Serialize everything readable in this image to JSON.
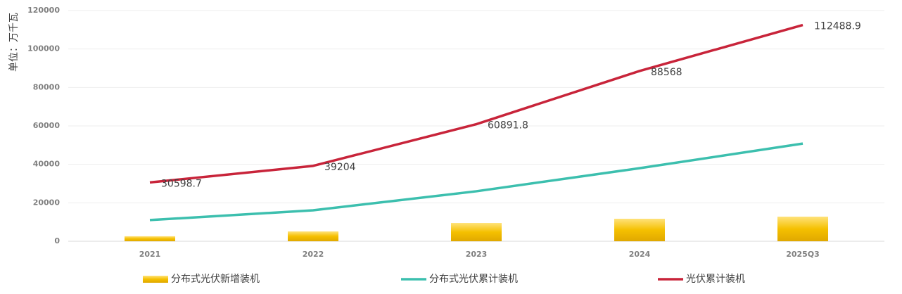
{
  "chart_data": {
    "type": "combo",
    "y_label": "单位：万千瓦",
    "categories": [
      "2021",
      "2022",
      "2023",
      "2024",
      "2025Q3"
    ],
    "series": [
      {
        "name": "分布式光伏新增装机",
        "type": "bar",
        "color": "#f0b400",
        "values": [
          2600,
          5100,
          9500,
          11700,
          12800
        ]
      },
      {
        "name": "分布式光伏累计装机",
        "type": "line",
        "color": "#3cbfae",
        "values": [
          11000,
          16100,
          26000,
          38000,
          50800
        ]
      },
      {
        "name": "光伏累计装机",
        "type": "line",
        "color": "#c8243a",
        "values": [
          30598.7,
          39204,
          60891.8,
          88568,
          112488.9
        ],
        "data_labels": true
      }
    ],
    "ylim": [
      0,
      120000
    ],
    "yticks": [
      0,
      20000,
      40000,
      60000,
      80000,
      100000,
      120000
    ],
    "grid": true
  }
}
